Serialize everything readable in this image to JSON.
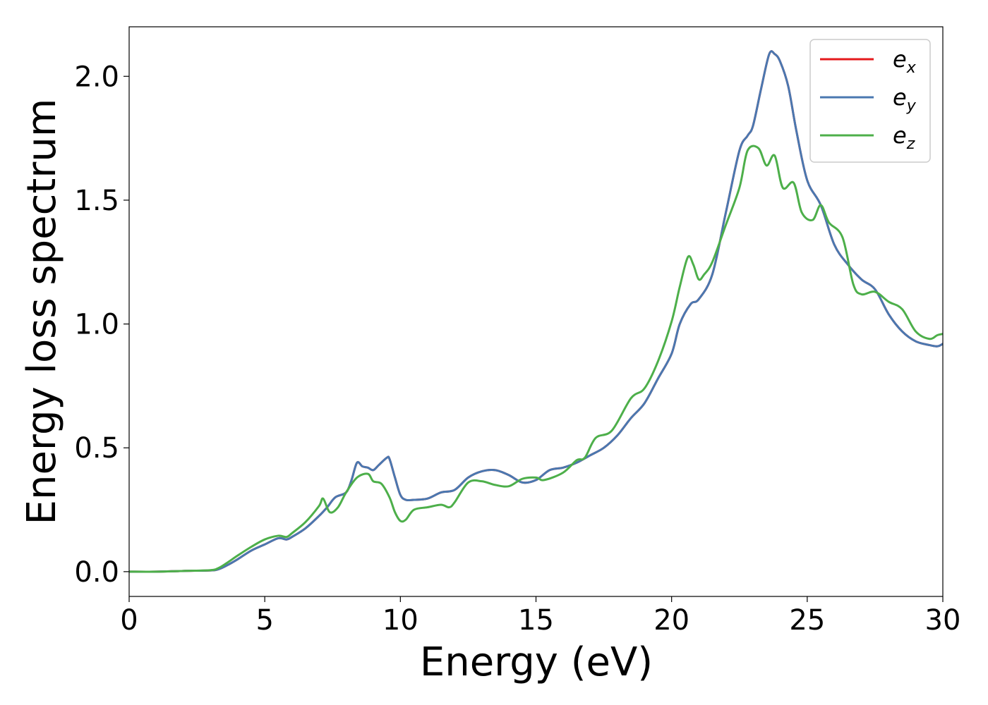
{
  "chart_data": {
    "type": "line",
    "title": "",
    "xlabel": "Energy (eV)",
    "ylabel": "Energy loss spectrum",
    "xlim": [
      0,
      30
    ],
    "ylim": [
      -0.1,
      2.2
    ],
    "xticks": [
      0,
      5,
      10,
      15,
      20,
      25,
      30
    ],
    "xtick_labels": [
      "0",
      "5",
      "10",
      "15",
      "20",
      "25",
      "30"
    ],
    "yticks": [
      0.0,
      0.5,
      1.0,
      1.5,
      2.0
    ],
    "ytick_labels": [
      "0.0",
      "0.5",
      "1.0",
      "1.5",
      "2.0"
    ],
    "grid": false,
    "legend_position": "top-right",
    "series": [
      {
        "name": "e_x",
        "legend_main": "e",
        "legend_sub": "x",
        "color": "#e41a1c",
        "x": [
          0,
          1,
          2,
          3,
          3.3,
          3.6,
          4,
          4.5,
          5,
          5.5,
          5.8,
          6,
          6.5,
          7,
          7.3,
          7.6,
          8,
          8.2,
          8.4,
          8.6,
          8.8,
          9,
          9.2,
          9.5,
          9.6,
          9.8,
          10,
          10.2,
          10.5,
          11,
          11.5,
          12,
          12.5,
          13,
          13.5,
          14,
          14.5,
          15,
          15.5,
          16,
          16.5,
          17,
          17.5,
          18,
          18.5,
          19,
          19.5,
          20,
          20.3,
          20.7,
          21,
          21.5,
          22,
          22.5,
          22.8,
          23,
          23.3,
          23.6,
          23.8,
          24,
          24.3,
          24.6,
          25,
          25.5,
          26,
          26.5,
          27,
          27.5,
          28,
          28.5,
          29,
          29.5,
          29.8,
          30
        ],
        "y": [
          0,
          0,
          0.003,
          0.005,
          0.01,
          0.025,
          0.05,
          0.085,
          0.11,
          0.135,
          0.13,
          0.14,
          0.175,
          0.225,
          0.26,
          0.3,
          0.32,
          0.37,
          0.44,
          0.425,
          0.42,
          0.41,
          0.43,
          0.46,
          0.455,
          0.38,
          0.31,
          0.29,
          0.29,
          0.295,
          0.32,
          0.33,
          0.38,
          0.405,
          0.41,
          0.39,
          0.36,
          0.37,
          0.41,
          0.42,
          0.44,
          0.47,
          0.5,
          0.55,
          0.62,
          0.68,
          0.78,
          0.88,
          1.0,
          1.08,
          1.1,
          1.2,
          1.45,
          1.7,
          1.76,
          1.8,
          1.95,
          2.09,
          2.09,
          2.06,
          1.96,
          1.78,
          1.58,
          1.48,
          1.32,
          1.24,
          1.18,
          1.14,
          1.04,
          0.97,
          0.93,
          0.915,
          0.91,
          0.92
        ]
      },
      {
        "name": "e_y",
        "legend_main": "e",
        "legend_sub": "y",
        "color": "#4a78b0",
        "x": [
          0,
          1,
          2,
          3,
          3.3,
          3.6,
          4,
          4.5,
          5,
          5.5,
          5.8,
          6,
          6.5,
          7,
          7.3,
          7.6,
          8,
          8.2,
          8.4,
          8.6,
          8.8,
          9,
          9.2,
          9.5,
          9.6,
          9.8,
          10,
          10.2,
          10.5,
          11,
          11.5,
          12,
          12.5,
          13,
          13.5,
          14,
          14.5,
          15,
          15.5,
          16,
          16.5,
          17,
          17.5,
          18,
          18.5,
          19,
          19.5,
          20,
          20.3,
          20.7,
          21,
          21.5,
          22,
          22.5,
          22.8,
          23,
          23.3,
          23.6,
          23.8,
          24,
          24.3,
          24.6,
          25,
          25.5,
          26,
          26.5,
          27,
          27.5,
          28,
          28.5,
          29,
          29.5,
          29.8,
          30
        ],
        "y": [
          0,
          0,
          0.003,
          0.005,
          0.01,
          0.025,
          0.05,
          0.085,
          0.11,
          0.135,
          0.13,
          0.14,
          0.175,
          0.225,
          0.26,
          0.3,
          0.32,
          0.37,
          0.44,
          0.425,
          0.42,
          0.41,
          0.43,
          0.46,
          0.455,
          0.38,
          0.31,
          0.29,
          0.29,
          0.295,
          0.32,
          0.33,
          0.38,
          0.405,
          0.41,
          0.39,
          0.36,
          0.37,
          0.41,
          0.42,
          0.44,
          0.47,
          0.5,
          0.55,
          0.62,
          0.68,
          0.78,
          0.88,
          1.0,
          1.08,
          1.1,
          1.2,
          1.45,
          1.7,
          1.76,
          1.8,
          1.95,
          2.09,
          2.09,
          2.06,
          1.96,
          1.78,
          1.58,
          1.48,
          1.32,
          1.24,
          1.18,
          1.14,
          1.04,
          0.97,
          0.93,
          0.915,
          0.91,
          0.92
        ]
      },
      {
        "name": "e_z",
        "legend_main": "e",
        "legend_sub": "z",
        "color": "#4daf4a",
        "x": [
          0,
          1,
          2,
          3,
          3.3,
          3.6,
          4,
          4.5,
          5,
          5.5,
          5.8,
          6,
          6.5,
          7,
          7.15,
          7.4,
          7.7,
          8,
          8.4,
          8.8,
          9,
          9.3,
          9.6,
          9.8,
          10,
          10.2,
          10.5,
          11,
          11.5,
          11.8,
          12,
          12.5,
          13,
          13.5,
          14,
          14.5,
          15,
          15.3,
          16,
          16.5,
          16.8,
          17.2,
          17.8,
          18.5,
          19,
          19.5,
          20,
          20.3,
          20.6,
          20.8,
          21,
          21.2,
          21.5,
          22,
          22.5,
          22.8,
          23.2,
          23.5,
          23.8,
          24.1,
          24.5,
          24.8,
          25.2,
          25.5,
          25.8,
          26.3,
          26.7,
          27,
          27.5,
          28,
          28.5,
          29,
          29.5,
          29.8,
          30
        ],
        "y": [
          0,
          0,
          0.003,
          0.006,
          0.015,
          0.035,
          0.065,
          0.1,
          0.13,
          0.145,
          0.14,
          0.155,
          0.2,
          0.265,
          0.295,
          0.24,
          0.26,
          0.32,
          0.38,
          0.395,
          0.365,
          0.355,
          0.3,
          0.24,
          0.205,
          0.21,
          0.25,
          0.26,
          0.27,
          0.26,
          0.28,
          0.36,
          0.365,
          0.35,
          0.345,
          0.375,
          0.38,
          0.37,
          0.4,
          0.45,
          0.46,
          0.54,
          0.57,
          0.7,
          0.74,
          0.85,
          1.01,
          1.15,
          1.27,
          1.24,
          1.18,
          1.2,
          1.25,
          1.4,
          1.55,
          1.7,
          1.71,
          1.64,
          1.68,
          1.55,
          1.57,
          1.45,
          1.42,
          1.48,
          1.41,
          1.35,
          1.16,
          1.12,
          1.13,
          1.09,
          1.06,
          0.97,
          0.94,
          0.955,
          0.96
        ]
      }
    ]
  }
}
